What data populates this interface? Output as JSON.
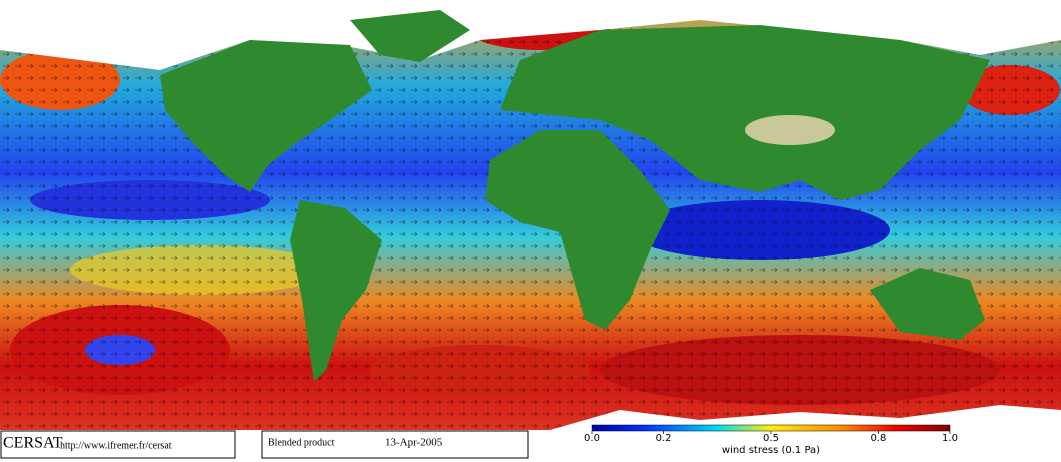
{
  "footer": {
    "logo": "CERSAT",
    "url": "http://www.ifremer.fr/cersat",
    "product": "Blended product",
    "date": "13-Apr-2005"
  },
  "colorbar": {
    "label": "wind stress (0.1 Pa)",
    "range": [
      0,
      1
    ],
    "ticks": [
      {
        "value": 0,
        "label": "0.0"
      },
      0.2,
      0.5,
      0.8,
      {
        "value": 1,
        "label": "1.0"
      }
    ]
  }
}
